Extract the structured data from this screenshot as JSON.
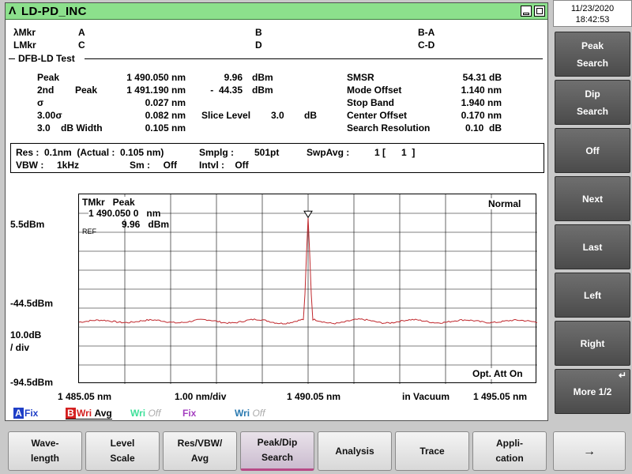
{
  "title": "LD-PD_INC",
  "datetime": {
    "date": "11/23/2020",
    "time": "18:42:53"
  },
  "markers": {
    "lambda_label": "λMkr",
    "lambda_a": "A",
    "lambda_b": "B",
    "lambda_ba": "B-A",
    "level_label": "LMkr",
    "level_c": "C",
    "level_d": "D",
    "level_cd": "C-D"
  },
  "section_title": "DFB-LD Test",
  "results_left": [
    {
      "label": "Peak",
      "sub": "",
      "value": "1 490.050 nm"
    },
    {
      "label": "2nd",
      "sub": "Peak",
      "value": "1 491.190 nm"
    },
    {
      "label": "σ",
      "sub": "",
      "value": "0.027 nm"
    },
    {
      "label": "3.00σ",
      "sub": "",
      "value": "0.082 nm"
    },
    {
      "label": "3.0",
      "sub": "dB Width",
      "value": "0.105 nm"
    }
  ],
  "results_mid": {
    "peak_level": "9.96",
    "peak_unit": "dBm",
    "second_level": "-  44.35",
    "second_unit": "dBm",
    "slice_label": "Slice Level",
    "slice_value": "3.0",
    "slice_unit": "dB"
  },
  "results_right": [
    {
      "label": "SMSR",
      "value": "54.31 dB"
    },
    {
      "label": "Mode Offset",
      "value": "1.140 nm"
    },
    {
      "label": "Stop Band",
      "value": "1.940 nm"
    },
    {
      "label": "Center Offset",
      "value": "0.170 nm"
    },
    {
      "label": "Search Resolution",
      "value": "0.10  dB"
    }
  ],
  "params": {
    "res": "Res :  0.1nm  (Actual :  0.105 nm)",
    "smplg_label": "Smplg :",
    "smplg_value": "501pt",
    "swpavg_label": "SwpAvg :",
    "swpavg_value": "1 [      1  ]",
    "vbw": "VBW :     1kHz",
    "sm": "Sm :     Off",
    "intvl": "Intvl :    Off"
  },
  "plot": {
    "ref_level": "5.5dBm",
    "mid_level": "-44.5dBm",
    "scale_line1": "10.0dB",
    "scale_line2": "/ div",
    "bottom_level": "-94.5dBm",
    "ref_tag": "REF",
    "tmkr_label": "TMkr   Peak",
    "tmkr_wavelength": "1 490.050 0   nm",
    "tmkr_level": "9.96   dBm",
    "mode_label": "Normal",
    "opt_att": "Opt. Att On",
    "x_start": "1 485.05 nm",
    "x_div": "1.00 nm/div",
    "x_center": "1 490.05 nm",
    "x_medium": "in Vacuum",
    "x_stop": "1 495.05 nm"
  },
  "traces": [
    {
      "letter": "A",
      "letter_color": "#1f3fc7",
      "mode": "Fix",
      "mode_color": "#1f3fc7",
      "extra": ""
    },
    {
      "letter": "B",
      "letter_color": "#d42020",
      "mode": "Wri",
      "mode_color": "#d42020",
      "extra": "Avg"
    },
    {
      "letter": "",
      "letter_color": "",
      "mode": "Wri",
      "mode_color": "#3fe09a",
      "extra": "Off"
    },
    {
      "letter": "",
      "letter_color": "",
      "mode": "Fix",
      "mode_color": "#a43fc0",
      "extra": ""
    },
    {
      "letter": "",
      "letter_color": "",
      "mode": "Wri",
      "mode_color": "#2a7ab0",
      "extra": "Off"
    }
  ],
  "side_buttons": [
    [
      "Peak",
      "Search"
    ],
    [
      "Dip",
      "Search"
    ],
    [
      "Off"
    ],
    [
      "Next"
    ],
    [
      "Last"
    ],
    [
      "Left"
    ],
    [
      "Right"
    ],
    [
      "More 1/2"
    ]
  ],
  "bottom_buttons": [
    [
      "Wave-",
      "length"
    ],
    [
      "Level",
      "Scale"
    ],
    [
      "Res/VBW/",
      "Avg"
    ],
    [
      "Peak/Dip",
      "Search"
    ],
    [
      "Analysis"
    ],
    [
      "Trace"
    ],
    [
      "Appli-",
      "cation"
    ],
    [
      "→"
    ]
  ],
  "colors": {
    "titlebar": "#8ce08c",
    "trace": "#c0282d",
    "active_tab_accent": "#b74a86"
  }
}
